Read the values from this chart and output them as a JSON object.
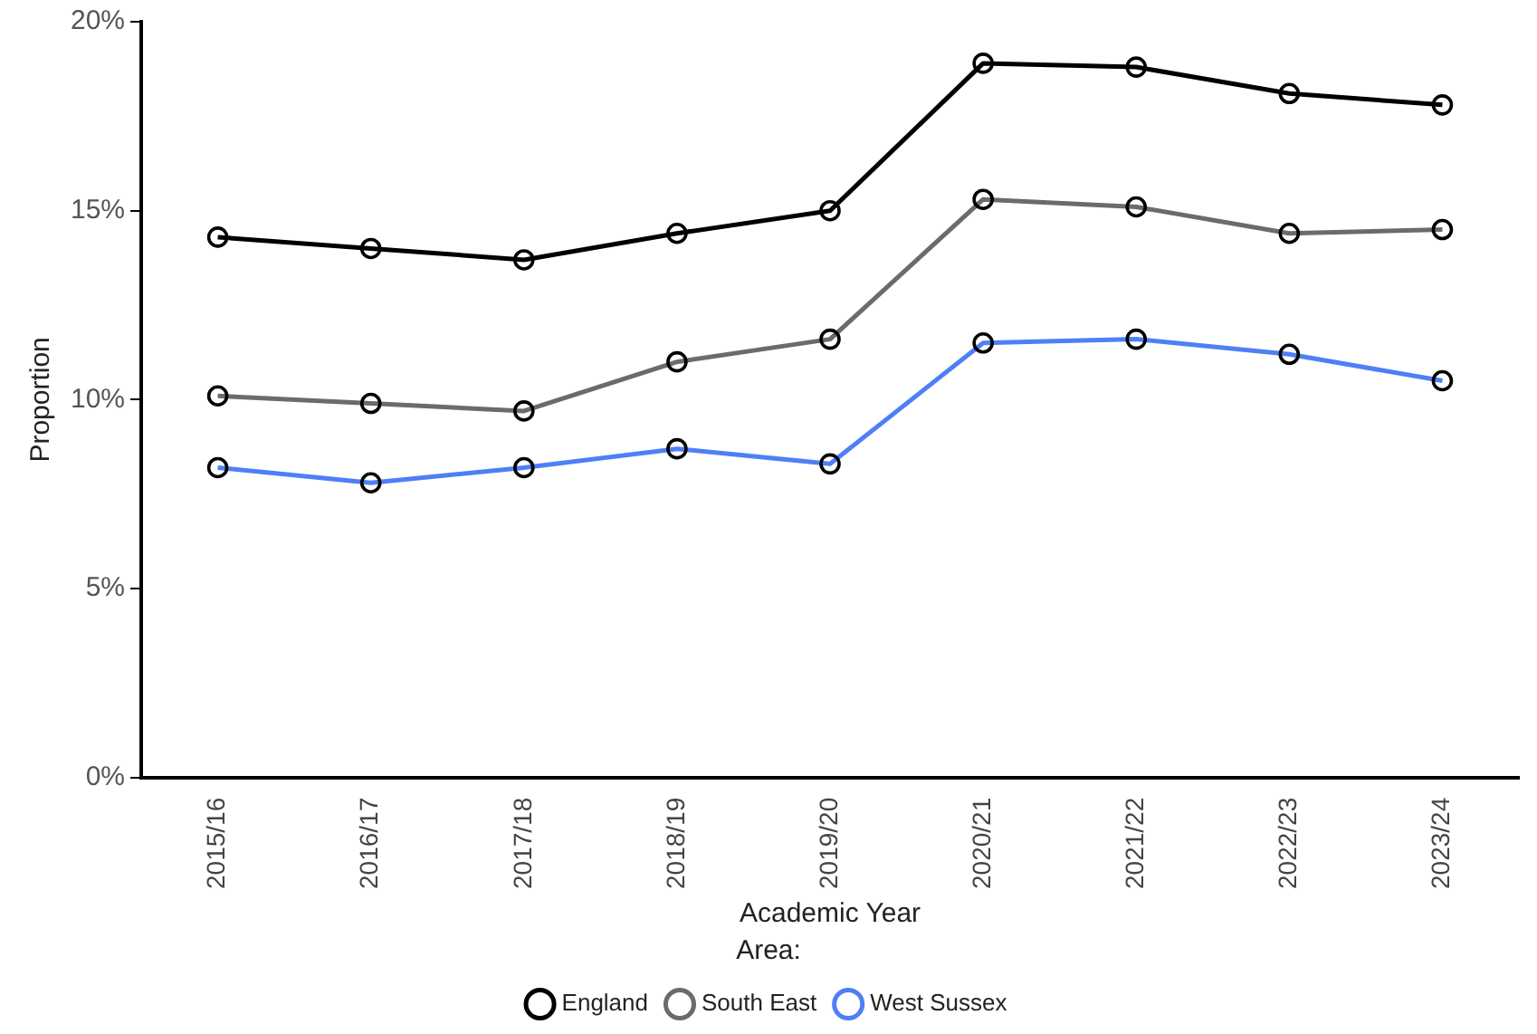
{
  "chart_data": {
    "type": "line",
    "xlabel": "Academic Year",
    "ylabel": "Proportion",
    "legend_title": "Area:",
    "legend": "bottom",
    "grid": false,
    "marker": "circle",
    "line_style": "solid",
    "categories": [
      "2015/16",
      "2016/17",
      "2017/18",
      "2018/19",
      "2019/20",
      "2020/21",
      "2021/22",
      "2022/23",
      "2023/24"
    ],
    "ylim": [
      0,
      20
    ],
    "yticks": [
      {
        "value": 0,
        "label": "0%"
      },
      {
        "value": 5,
        "label": "5%"
      },
      {
        "value": 10,
        "label": "10%"
      },
      {
        "value": 15,
        "label": "15%"
      },
      {
        "value": 20,
        "label": "20%"
      }
    ],
    "series": [
      {
        "name": "England",
        "color": "#000000",
        "values": [
          14.3,
          14.0,
          13.7,
          14.4,
          15.0,
          18.9,
          18.8,
          18.1,
          17.8
        ]
      },
      {
        "name": "South East",
        "color": "#6b6b6b",
        "values": [
          10.1,
          9.9,
          9.7,
          11.0,
          11.6,
          15.3,
          15.1,
          14.4,
          14.5
        ]
      },
      {
        "name": "West Sussex",
        "color": "#4f7ff7",
        "values": [
          8.2,
          7.8,
          8.2,
          8.7,
          8.3,
          11.5,
          11.6,
          11.2,
          10.5
        ]
      }
    ]
  }
}
